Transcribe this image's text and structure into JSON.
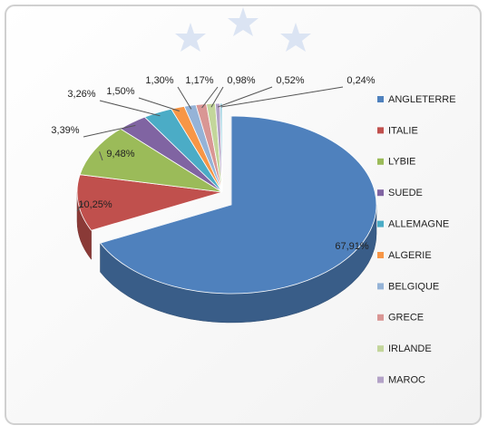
{
  "chart_data": {
    "type": "pie3d",
    "categories": [
      "ANGLETERRE",
      "ITALIE",
      "LYBIE",
      "SUEDE",
      "ALLEMAGNE",
      "ALGERIE",
      "BELGIQUE",
      "GRECE",
      "IRLANDE",
      "MAROC",
      null
    ],
    "values": [
      67.91,
      10.25,
      9.48,
      3.39,
      3.26,
      1.5,
      1.3,
      1.17,
      0.98,
      0.52,
      0.24
    ],
    "value_labels": [
      "67,91%",
      "10,25%",
      "9,48%",
      "3,39%",
      "3,26%",
      "1,50%",
      "1,30%",
      "1,17%",
      "0,98%",
      "0,52%",
      "0,24%"
    ],
    "colors": [
      "#4f81bd",
      "#c0504d",
      "#9bbb59",
      "#8064a2",
      "#4bacc6",
      "#f79646",
      "#95b3d7",
      "#d99694",
      "#c3d69b",
      "#b3a2c7",
      "#93cddd"
    ]
  }
}
